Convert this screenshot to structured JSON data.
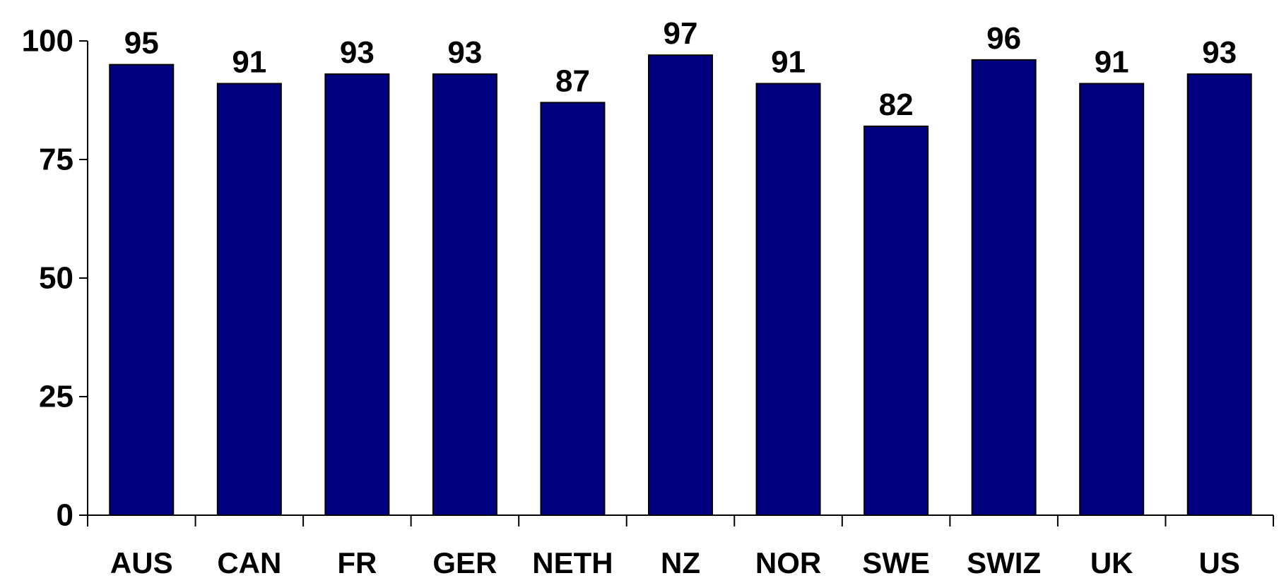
{
  "chart_data": {
    "type": "bar",
    "title": "",
    "xlabel": "",
    "ylabel": "",
    "categories": [
      "AUS",
      "CAN",
      "FR",
      "GER",
      "NETH",
      "NZ",
      "NOR",
      "SWE",
      "SWIZ",
      "UK",
      "US"
    ],
    "values": [
      95,
      91,
      93,
      93,
      87,
      97,
      91,
      82,
      96,
      91,
      93
    ],
    "data_labels": [
      "95",
      "91",
      "93",
      "93",
      "87",
      "97",
      "91",
      "82",
      "96",
      "91",
      "93"
    ],
    "ylim": [
      0,
      100
    ],
    "yticks": [
      0,
      25,
      50,
      75,
      100
    ],
    "ytick_labels": [
      "0",
      "25",
      "50",
      "75",
      "100"
    ],
    "grid": false,
    "legend": "none",
    "colors": {
      "bar": "#000080",
      "bar_outline": "#000000",
      "axis": "#000000",
      "text": "#000000"
    }
  }
}
